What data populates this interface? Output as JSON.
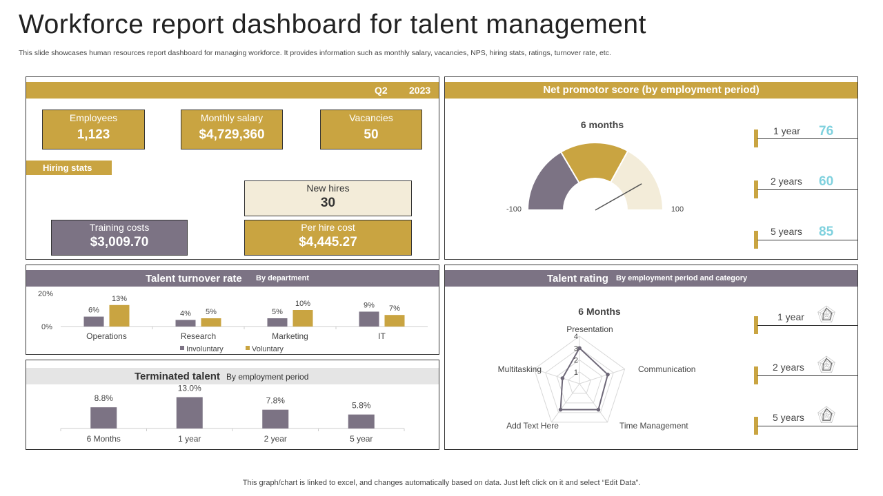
{
  "header": {
    "title": "Workforce report dashboard for talent management",
    "subtitle": "This slide showcases human resources report dashboard for managing workforce. It provides information such as monthly salary, vacancies, NPS, hiring stats, ratings, turnover rate, etc."
  },
  "footer": "This graph/chart is linked to excel, and changes automatically based on data. Just left click on it and select “Edit Data”.",
  "summary": {
    "quarter": "Q2",
    "year": "2023",
    "kpis": [
      {
        "label": "Employees",
        "value": "1,123"
      },
      {
        "label": "Monthly salary",
        "value": "$4,729,360"
      },
      {
        "label": "Vacancies",
        "value": "50"
      }
    ],
    "hiring_stats_label": "Hiring stats",
    "new_hires": {
      "label": "New hires",
      "value": "30"
    },
    "training_costs": {
      "label": "Training costs",
      "value": "$3,009.70"
    },
    "per_hire_cost": {
      "label": "Per hire cost",
      "value": "$4,445.27"
    }
  },
  "nps": {
    "title": "Net promotor score (by employment period)",
    "gauge_title": "6 months",
    "min_label": "-100",
    "max_label": "100",
    "needle_value": 60,
    "rows": [
      {
        "label": "1 year",
        "value": "76"
      },
      {
        "label": "2 years",
        "value": "60"
      },
      {
        "label": "5 years",
        "value": "85"
      }
    ]
  },
  "turnover": {
    "title": "Talent turnover rate",
    "subtitle": "By department"
  },
  "terminated": {
    "title": "Terminated talent",
    "subtitle": "By employment period"
  },
  "rating": {
    "title": "Talent rating",
    "subtitle": "By employment period and category",
    "rows": [
      {
        "label": "1 year"
      },
      {
        "label": "2 years"
      },
      {
        "label": "5 years"
      }
    ]
  },
  "colors": {
    "gold": "#c9a441",
    "gray": "#7c7384",
    "cream": "#f3ecd9",
    "teal": "#7fd1de"
  },
  "chart_data": [
    {
      "type": "bar",
      "id": "turnover",
      "categories": [
        "Operations",
        "Research",
        "Marketing",
        "IT"
      ],
      "series": [
        {
          "name": "Involuntary",
          "values": [
            6,
            4,
            5,
            9
          ],
          "labels": [
            "6%",
            "4%",
            "5%",
            "9%"
          ],
          "color": "#7c7384"
        },
        {
          "name": "Voluntary",
          "values": [
            13,
            5,
            10,
            7
          ],
          "labels": [
            "13%",
            "5%",
            "10%",
            "7%"
          ],
          "color": "#c9a441"
        }
      ],
      "yticks": [
        "20%",
        "0%"
      ],
      "ylim": [
        0,
        20
      ]
    },
    {
      "type": "bar",
      "id": "terminated",
      "categories": [
        "6 Months",
        "1 year",
        "2 year",
        "5 year"
      ],
      "values": [
        8.8,
        13.0,
        7.8,
        5.8
      ],
      "labels": [
        "8.8%",
        "13.0%",
        "7.8%",
        "5.8%"
      ],
      "color": "#7c7384",
      "ylim": [
        0,
        20
      ]
    },
    {
      "type": "radar",
      "id": "rating",
      "title": "6 Months",
      "axes": [
        "Presentation",
        "Communication",
        "Time Management",
        "Add Text Here",
        "Multitasking"
      ],
      "values": [
        3,
        2.5,
        2.7,
        2.7,
        1.5
      ],
      "rmax": 4,
      "rticks": [
        "4",
        "3",
        "2",
        "1"
      ]
    },
    {
      "type": "pie",
      "id": "nps-gauge",
      "values": [
        33,
        33,
        34
      ],
      "colors": [
        "#7c7384",
        "#c9a441",
        "#f3ecd9"
      ]
    }
  ]
}
